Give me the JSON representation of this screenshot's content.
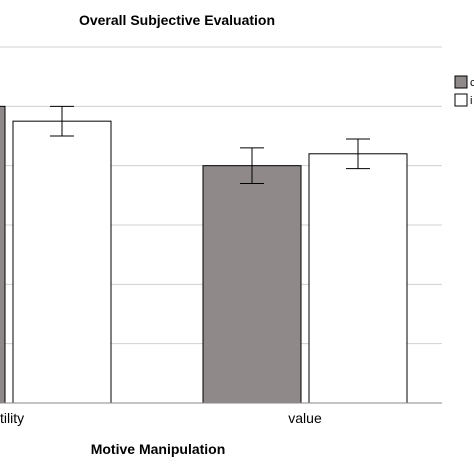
{
  "chart_data": {
    "type": "bar",
    "title": "Overall Subjective Evaluation",
    "xlabel": "Motive Manipulation",
    "ylabel": "",
    "categories": [
      "utility",
      "value"
    ],
    "visible_tick_labels": [
      "tility",
      "value"
    ],
    "ylim": [
      0,
      6
    ],
    "grid": true,
    "legend_position": "right",
    "series": [
      {
        "color": "#8f8a89",
        "values": [
          5.0,
          4.0
        ],
        "error": [
          0.3,
          0.3
        ]
      },
      {
        "color": "#ffffff",
        "values": [
          4.75,
          4.2
        ],
        "error": [
          0.25,
          0.25
        ]
      }
    ],
    "legend_labels": [
      "c",
      "i"
    ]
  }
}
